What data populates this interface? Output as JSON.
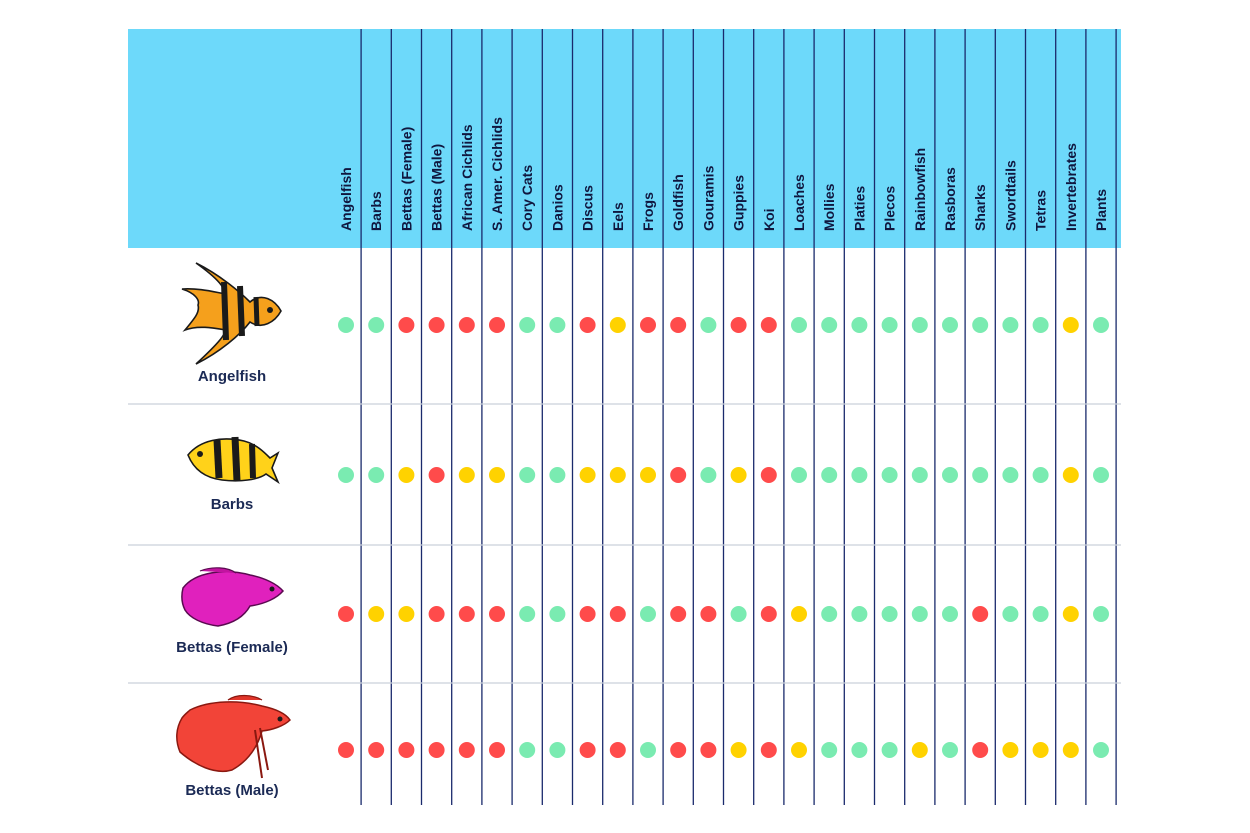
{
  "chart_data": {
    "type": "table",
    "columns": [
      "Angelfish",
      "Barbs",
      "Bettas (Female)",
      "Bettas (Male)",
      "African Cichlids",
      "S. Amer. Cichlids",
      "Cory Cats",
      "Danios",
      "Discus",
      "Eels",
      "Frogs",
      "Goldfish",
      "Gouramis",
      "Guppies",
      "Koi",
      "Loaches",
      "Mollies",
      "Platies",
      "Plecos",
      "Rainbowfish",
      "Rasboras",
      "Sharks",
      "Swordtails",
      "Tetras",
      "Invertebrates",
      "Plants"
    ],
    "rows": [
      {
        "label": "Angelfish",
        "icon": "angelfish-icon",
        "values": [
          "green",
          "green",
          "red",
          "red",
          "red",
          "red",
          "green",
          "green",
          "red",
          "yellow",
          "red",
          "red",
          "green",
          "red",
          "red",
          "green",
          "green",
          "green",
          "green",
          "green",
          "green",
          "green",
          "green",
          "green",
          "yellow",
          "green"
        ]
      },
      {
        "label": "Barbs",
        "icon": "barb-fish-icon",
        "values": [
          "green",
          "green",
          "yellow",
          "red",
          "yellow",
          "yellow",
          "green",
          "green",
          "yellow",
          "yellow",
          "yellow",
          "red",
          "green",
          "yellow",
          "red",
          "green",
          "green",
          "green",
          "green",
          "green",
          "green",
          "green",
          "green",
          "green",
          "yellow",
          "green"
        ]
      },
      {
        "label": "Bettas (Female)",
        "icon": "female-betta-icon",
        "values": [
          "red",
          "yellow",
          "yellow",
          "red",
          "red",
          "red",
          "green",
          "green",
          "red",
          "red",
          "green",
          "red",
          "red",
          "green",
          "red",
          "yellow",
          "green",
          "green",
          "green",
          "green",
          "green",
          "red",
          "green",
          "green",
          "yellow",
          "green"
        ]
      },
      {
        "label": "Bettas (Male)",
        "icon": "male-betta-icon",
        "values": [
          "red",
          "red",
          "red",
          "red",
          "red",
          "red",
          "green",
          "green",
          "red",
          "red",
          "green",
          "red",
          "red",
          "yellow",
          "red",
          "yellow",
          "green",
          "green",
          "green",
          "yellow",
          "green",
          "red",
          "yellow",
          "yellow",
          "yellow",
          "green"
        ]
      }
    ],
    "colors": {
      "green": "#7aebb1",
      "yellow": "#ffd200",
      "red": "#ff4b4b"
    },
    "header_background": "#6dd9fa",
    "grid_line_color": "#1a2a6c",
    "row_divider_color": "#c9d0da"
  }
}
